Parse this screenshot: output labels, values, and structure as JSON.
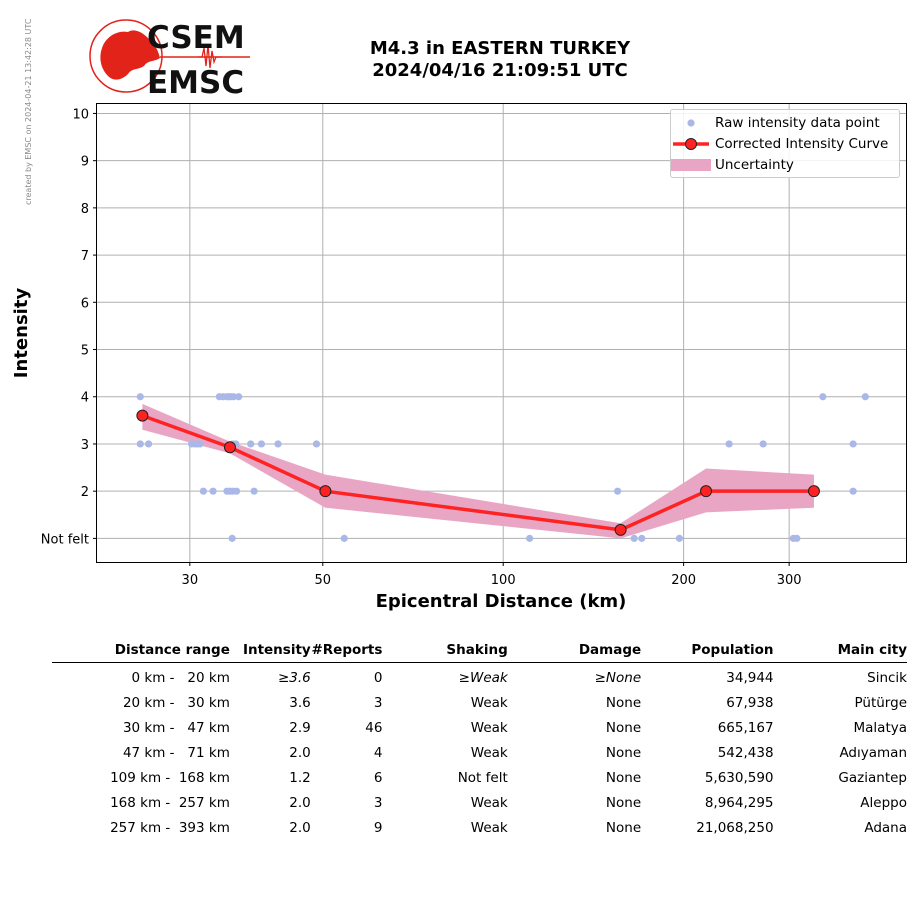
{
  "side_credit": "created by EMSC on 2024-04-21 13:42:28 UTC",
  "logo": {
    "line1": "CSEM",
    "line2": "EMSC",
    "brand_color": "#e2231a"
  },
  "title": {
    "line1": "M4.3 in EASTERN TURKEY",
    "line2": "2024/04/16 21:09:51 UTC"
  },
  "chart_data": {
    "type": "scatter",
    "xlabel": "Epicentral Distance (km)",
    "ylabel": "Intensity",
    "x_scale": "log",
    "xlim": [
      21,
      470
    ],
    "ylim": [
      0.5,
      10.2
    ],
    "x_ticks": [
      30,
      50,
      100,
      200,
      300
    ],
    "y_ticks": [
      1,
      2,
      3,
      4,
      5,
      6,
      7,
      8,
      9,
      10
    ],
    "y_tick_labels": [
      "Not felt",
      "2",
      "3",
      "4",
      "5",
      "6",
      "7",
      "8",
      "9",
      "10"
    ],
    "grid": true,
    "legend_position": "top-right",
    "colors": {
      "raw": "#aab8e8",
      "curve": "#ff2222",
      "marker": "#ff2222",
      "uncertainty": "#e9a6c4"
    },
    "series": [
      {
        "name": "Raw intensity data point",
        "kind": "scatter",
        "points": [
          [
            24.8,
            4
          ],
          [
            24.8,
            3
          ],
          [
            25.6,
            3
          ],
          [
            30.2,
            3
          ],
          [
            30.6,
            3
          ],
          [
            30.9,
            3
          ],
          [
            31.2,
            3
          ],
          [
            31.6,
            2
          ],
          [
            32.8,
            2
          ],
          [
            33.6,
            4
          ],
          [
            34.1,
            4
          ],
          [
            34.6,
            4
          ],
          [
            34.8,
            4
          ],
          [
            35.1,
            4
          ],
          [
            35.5,
            4
          ],
          [
            36.2,
            4
          ],
          [
            34.6,
            2
          ],
          [
            35.0,
            2
          ],
          [
            35.4,
            2
          ],
          [
            35.9,
            2
          ],
          [
            35.3,
            1
          ],
          [
            35.4,
            3
          ],
          [
            35.8,
            3
          ],
          [
            37.9,
            3
          ],
          [
            38.4,
            2
          ],
          [
            39.5,
            3
          ],
          [
            42.1,
            3
          ],
          [
            48.8,
            3
          ],
          [
            54.3,
            1
          ],
          [
            110.7,
            1
          ],
          [
            155.2,
            2
          ],
          [
            165.4,
            1
          ],
          [
            170.3,
            1
          ],
          [
            196.8,
            1
          ],
          [
            238.2,
            3
          ],
          [
            271.5,
            3
          ],
          [
            304.9,
            1
          ],
          [
            309.0,
            1
          ],
          [
            341.5,
            4
          ],
          [
            383.6,
            3
          ],
          [
            383.6,
            2
          ],
          [
            402.0,
            4
          ]
        ]
      },
      {
        "name": "Corrected Intensity Curve",
        "kind": "line",
        "points": [
          [
            25.0,
            3.6
          ],
          [
            35.0,
            2.93
          ],
          [
            50.5,
            2.0
          ],
          [
            157.0,
            1.18
          ],
          [
            218.0,
            2.0
          ],
          [
            330.0,
            2.0
          ]
        ]
      },
      {
        "name": "Uncertainty",
        "kind": "band",
        "points": [
          [
            25.0,
            3.3,
            3.85
          ],
          [
            35.0,
            2.8,
            3.05
          ],
          [
            50.5,
            1.65,
            2.35
          ],
          [
            157.0,
            1.0,
            1.32
          ],
          [
            218.0,
            1.55,
            2.48
          ],
          [
            330.0,
            1.65,
            2.35
          ]
        ]
      }
    ]
  },
  "table": {
    "headers": [
      "Distance range",
      "Intensity",
      "#Reports",
      "Shaking",
      "Damage",
      "Population",
      "Main city"
    ],
    "rows": [
      [
        "0 km -   20 km",
        "≥3.6",
        "0",
        "≥Weak",
        "≥None",
        "34,944",
        "Sincik"
      ],
      [
        "20 km -   30 km",
        "3.6",
        "3",
        "Weak",
        "None",
        "67,938",
        "Pütürge"
      ],
      [
        "30 km -   47 km",
        "2.9",
        "46",
        "Weak",
        "None",
        "665,167",
        "Malatya"
      ],
      [
        "47 km -   71 km",
        "2.0",
        "4",
        "Weak",
        "None",
        "542,438",
        "Adıyaman"
      ],
      [
        "109 km -  168 km",
        "1.2",
        "6",
        "Not felt",
        "None",
        "5,630,590",
        "Gaziantep"
      ],
      [
        "168 km -  257 km",
        "2.0",
        "3",
        "Weak",
        "None",
        "8,964,295",
        "Aleppo"
      ],
      [
        "257 km -  393 km",
        "2.0",
        "9",
        "Weak",
        "None",
        "21,068,250",
        "Adana"
      ]
    ]
  }
}
